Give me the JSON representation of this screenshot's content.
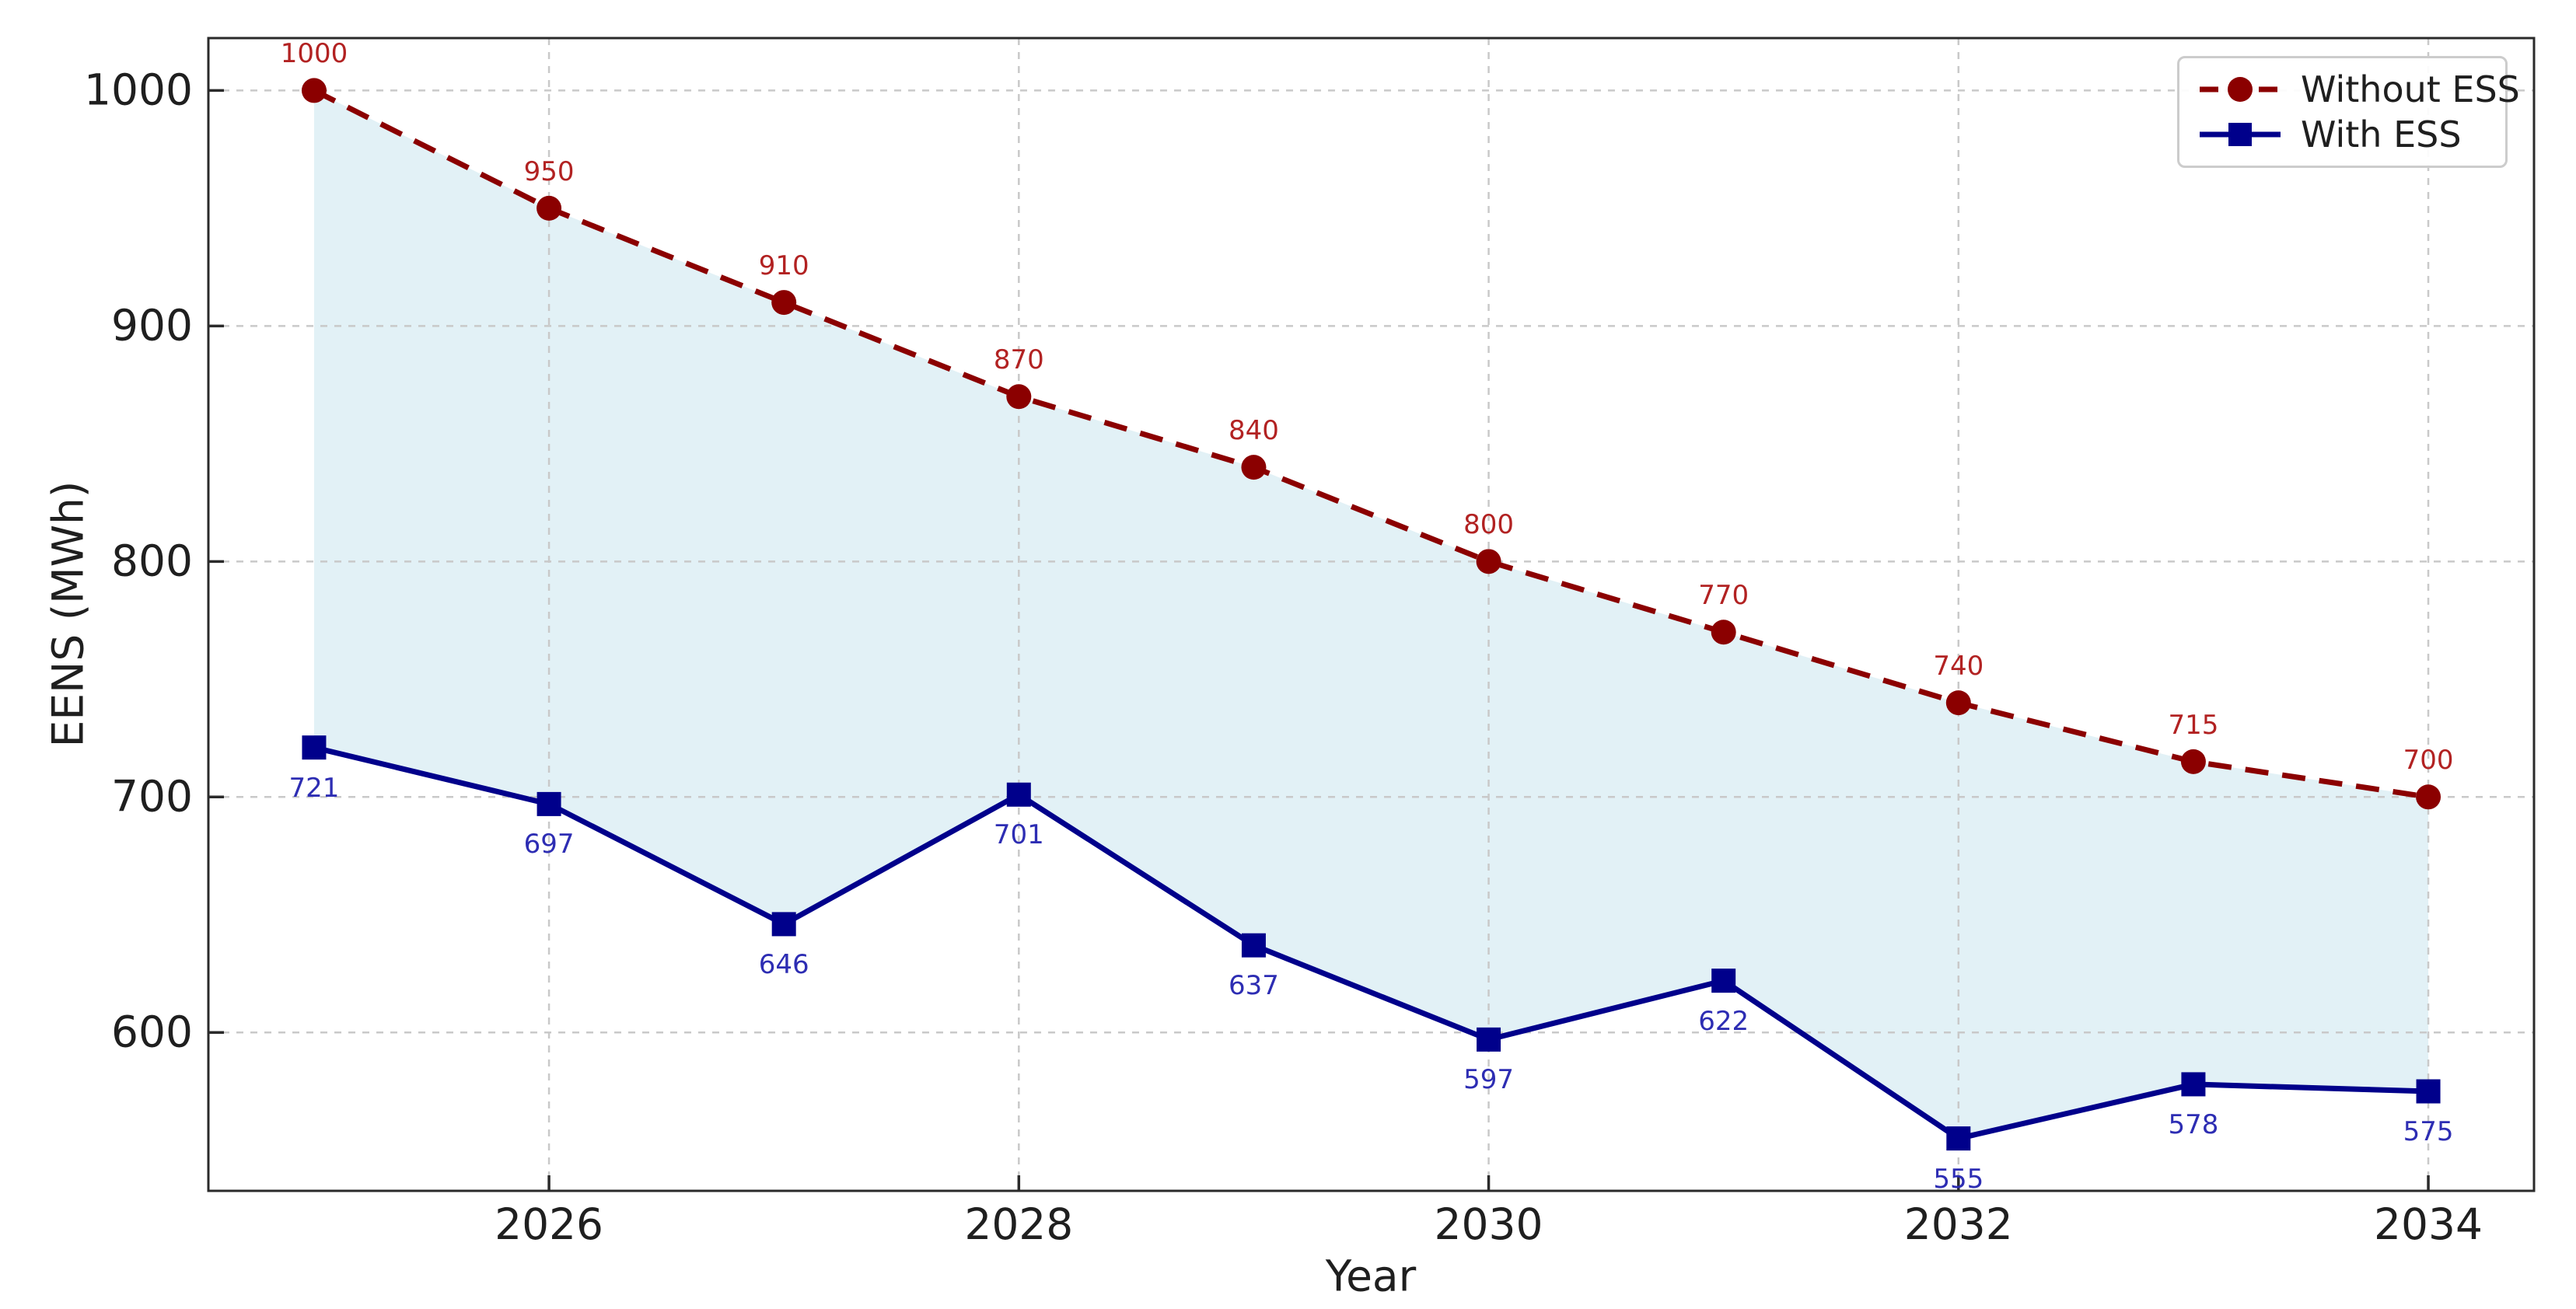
{
  "chart_data": {
    "type": "line",
    "title": "",
    "xlabel": "Year",
    "ylabel": "EENS (MWh)",
    "x": [
      2025,
      2026,
      2027,
      2028,
      2029,
      2030,
      2031,
      2032,
      2033,
      2034
    ],
    "series": [
      {
        "name": "Without ESS",
        "values": [
          1000,
          950,
          910,
          870,
          840,
          800,
          770,
          740,
          715,
          700
        ],
        "color": "#8b0000",
        "line_style": "dashed",
        "marker": "circle",
        "label_color": "#b22222",
        "label_position": "above"
      },
      {
        "name": "With ESS",
        "values": [
          721,
          697,
          646,
          701,
          637,
          597,
          622,
          555,
          578,
          575
        ],
        "color": "#00008b",
        "line_style": "solid",
        "marker": "square",
        "label_color": "#2d2db3",
        "label_position": "below"
      }
    ],
    "fill_between": {
      "between": [
        "Without ESS",
        "With ESS"
      ],
      "color": "#add8e6",
      "opacity": 0.35
    },
    "xlim": [
      2024.55,
      2034.45
    ],
    "ylim": [
      532.75,
      1022.25
    ],
    "x_ticks": [
      2026,
      2028,
      2030,
      2032,
      2034
    ],
    "y_ticks": [
      600,
      700,
      800,
      900,
      1000
    ],
    "grid": true,
    "grid_color": "#c9c9c9",
    "spine_color": "#2a2a2a",
    "tick_label_color": "#1f1f1f",
    "legend_position": "upper right"
  }
}
